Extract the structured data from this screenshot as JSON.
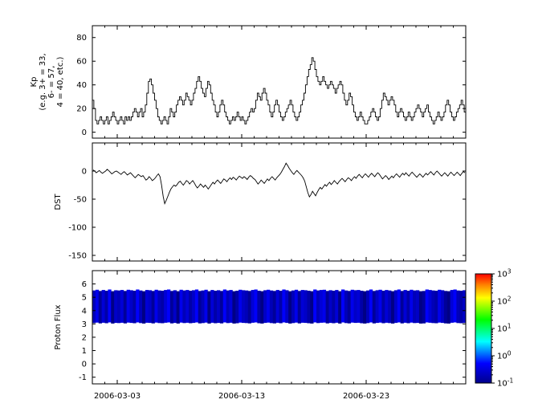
{
  "figure": {
    "background": "#ffffff",
    "line_color": "#000000",
    "axis_color": "#000000"
  },
  "xaxis": {
    "span_days": 30,
    "start_date": "2006-03-01",
    "ticks": [
      {
        "day": 2,
        "label": "2006-03-03"
      },
      {
        "day": 12,
        "label": "2006-03-13"
      },
      {
        "day": 22,
        "label": "2006-03-23"
      }
    ]
  },
  "chart_data": [
    {
      "type": "line",
      "style": "step",
      "ylabel_lines": [
        "Kp",
        "(e.g. 3+ = 33,",
        "6- = 57,",
        "4 = 40, etc.)"
      ],
      "ylim": [
        -5,
        90
      ],
      "yticks": [
        0,
        20,
        40,
        60,
        80
      ],
      "cadence_hours": 3,
      "values": [
        27,
        20,
        10,
        7,
        10,
        13,
        10,
        7,
        10,
        13,
        7,
        10,
        13,
        17,
        13,
        10,
        7,
        10,
        13,
        10,
        7,
        13,
        10,
        13,
        10,
        13,
        17,
        20,
        17,
        13,
        17,
        20,
        13,
        17,
        23,
        33,
        43,
        45,
        40,
        33,
        27,
        20,
        13,
        10,
        7,
        10,
        13,
        10,
        7,
        13,
        20,
        17,
        13,
        17,
        23,
        27,
        30,
        27,
        23,
        27,
        33,
        30,
        27,
        23,
        27,
        33,
        37,
        43,
        47,
        43,
        37,
        33,
        30,
        37,
        43,
        40,
        33,
        27,
        23,
        17,
        13,
        17,
        23,
        27,
        23,
        17,
        13,
        10,
        7,
        10,
        13,
        10,
        13,
        17,
        13,
        10,
        13,
        10,
        7,
        10,
        13,
        17,
        20,
        17,
        20,
        27,
        33,
        30,
        27,
        33,
        37,
        33,
        27,
        23,
        17,
        13,
        17,
        23,
        27,
        23,
        17,
        13,
        10,
        13,
        17,
        20,
        23,
        27,
        23,
        17,
        13,
        10,
        13,
        17,
        23,
        27,
        33,
        40,
        47,
        53,
        57,
        63,
        60,
        53,
        47,
        43,
        40,
        43,
        47,
        43,
        40,
        37,
        40,
        43,
        40,
        37,
        33,
        37,
        40,
        43,
        40,
        33,
        27,
        23,
        27,
        33,
        30,
        23,
        17,
        13,
        10,
        13,
        17,
        13,
        10,
        7,
        7,
        10,
        13,
        17,
        20,
        17,
        13,
        10,
        13,
        20,
        27,
        33,
        30,
        27,
        23,
        27,
        30,
        27,
        23,
        17,
        13,
        17,
        20,
        17,
        13,
        10,
        13,
        17,
        13,
        10,
        13,
        17,
        20,
        23,
        20,
        17,
        13,
        17,
        20,
        23,
        17,
        13,
        10,
        7,
        10,
        13,
        17,
        13,
        10,
        13,
        17,
        23,
        27,
        23,
        17,
        13,
        10,
        13,
        17,
        20,
        23,
        27,
        23,
        17
      ]
    },
    {
      "type": "line",
      "style": "line",
      "ylabel_lines": [
        "DST"
      ],
      "ylim": [
        -160,
        50
      ],
      "yticks": [
        0,
        -50,
        -100,
        -150
      ],
      "cadence_hours": 3,
      "values": [
        2,
        0,
        -3,
        -1,
        1,
        -2,
        -4,
        -2,
        0,
        3,
        1,
        -2,
        -5,
        -3,
        -1,
        0,
        -2,
        -4,
        -6,
        -3,
        -1,
        -4,
        -7,
        -5,
        -3,
        -6,
        -9,
        -12,
        -9,
        -6,
        -8,
        -10,
        -8,
        -12,
        -16,
        -14,
        -10,
        -13,
        -17,
        -15,
        -12,
        -8,
        -5,
        -10,
        -25,
        -45,
        -58,
        -52,
        -45,
        -38,
        -32,
        -28,
        -25,
        -27,
        -24,
        -20,
        -18,
        -22,
        -25,
        -21,
        -17,
        -19,
        -23,
        -20,
        -17,
        -21,
        -26,
        -30,
        -27,
        -23,
        -26,
        -29,
        -25,
        -28,
        -32,
        -28,
        -24,
        -20,
        -23,
        -19,
        -16,
        -19,
        -22,
        -18,
        -14,
        -16,
        -19,
        -15,
        -12,
        -15,
        -11,
        -13,
        -16,
        -12,
        -9,
        -11,
        -13,
        -10,
        -12,
        -15,
        -11,
        -8,
        -10,
        -13,
        -15,
        -19,
        -23,
        -20,
        -16,
        -19,
        -22,
        -18,
        -14,
        -17,
        -13,
        -10,
        -13,
        -16,
        -12,
        -9,
        -6,
        -2,
        3,
        8,
        14,
        10,
        5,
        1,
        -3,
        -6,
        -2,
        1,
        -2,
        -5,
        -8,
        -12,
        -18,
        -28,
        -38,
        -46,
        -42,
        -36,
        -40,
        -44,
        -38,
        -33,
        -29,
        -32,
        -28,
        -24,
        -27,
        -23,
        -20,
        -24,
        -21,
        -17,
        -20,
        -23,
        -19,
        -16,
        -13,
        -16,
        -19,
        -15,
        -12,
        -14,
        -17,
        -13,
        -10,
        -13,
        -9,
        -6,
        -9,
        -12,
        -8,
        -5,
        -8,
        -11,
        -7,
        -4,
        -7,
        -10,
        -6,
        -3,
        -6,
        -10,
        -14,
        -11,
        -8,
        -11,
        -15,
        -12,
        -9,
        -12,
        -8,
        -5,
        -8,
        -11,
        -7,
        -4,
        -7,
        -3,
        -6,
        -9,
        -5,
        -2,
        -5,
        -8,
        -11,
        -8,
        -5,
        -8,
        -11,
        -7,
        -4,
        -7,
        -4,
        -1,
        -4,
        -7,
        -3,
        0,
        -3,
        -6,
        -9,
        -6,
        -3,
        -6,
        -9,
        -5,
        -2,
        -5,
        -8,
        -5,
        -2,
        -5,
        -8,
        -4,
        -1,
        -3
      ]
    },
    {
      "type": "heatmap",
      "ylabel_lines": [
        "Proton Flux"
      ],
      "ylim": [
        -1.5,
        7
      ],
      "yticks": [
        -1,
        0,
        1,
        2,
        3,
        4,
        5,
        6
      ],
      "band_y": [
        3.0,
        5.6
      ],
      "band_base_hue": 240,
      "band_intensities": [
        0.5,
        0.8,
        0.3,
        0.7,
        0.4,
        0.9,
        0.2,
        0.6,
        0.5,
        0.7,
        0.3,
        0.8,
        0.6,
        0.4,
        0.9,
        0.5,
        0.2,
        0.7,
        0.6,
        0.3,
        0.8,
        0.5,
        0.4,
        0.7,
        0.9,
        0.3,
        0.6,
        0.2,
        0.8,
        0.5,
        0.7,
        0.4,
        0.6,
        0.9,
        0.3,
        0.5,
        0.8,
        0.2,
        0.7,
        0.4,
        0.6,
        0.3,
        0.9,
        0.5,
        0.7,
        0.2,
        0.4,
        0.8,
        0.6,
        0.5,
        0.3,
        0.7,
        0.9,
        0.4,
        0.2,
        0.6,
        0.8,
        0.5,
        0.3,
        0.7,
        0.4,
        0.9,
        0.6,
        0.2,
        0.5,
        0.8,
        0.3,
        0.7,
        0.6,
        0.4,
        0.2,
        0.9,
        0.5,
        0.7,
        0.8,
        0.3,
        0.6,
        0.4,
        0.7,
        0.2,
        0.9,
        0.5,
        0.3,
        0.8,
        0.6,
        0.7,
        0.4,
        0.2,
        0.5,
        0.9,
        0.3,
        0.6,
        0.8,
        0.4,
        0.7,
        0.5,
        0.2,
        0.6,
        0.9,
        0.3,
        0.7,
        0.4,
        0.8,
        0.5,
        0.6,
        0.2,
        0.3,
        0.9,
        0.7,
        0.5,
        0.4,
        0.8,
        0.6,
        0.3,
        0.2,
        0.7,
        0.9,
        0.5,
        0.4,
        0.6
      ],
      "colorbar": {
        "scale": "log",
        "tick_exponents": [
          -1,
          0,
          1,
          2,
          3
        ],
        "tick_labels": [
          "10^-1",
          "10^0",
          "10^1",
          "10^2",
          "10^3"
        ],
        "colors_bottom_to_top": [
          "#00008b",
          "#0000ff",
          "#00ffff",
          "#00ff00",
          "#ffff00",
          "#ff8000",
          "#ff0000"
        ]
      }
    }
  ]
}
